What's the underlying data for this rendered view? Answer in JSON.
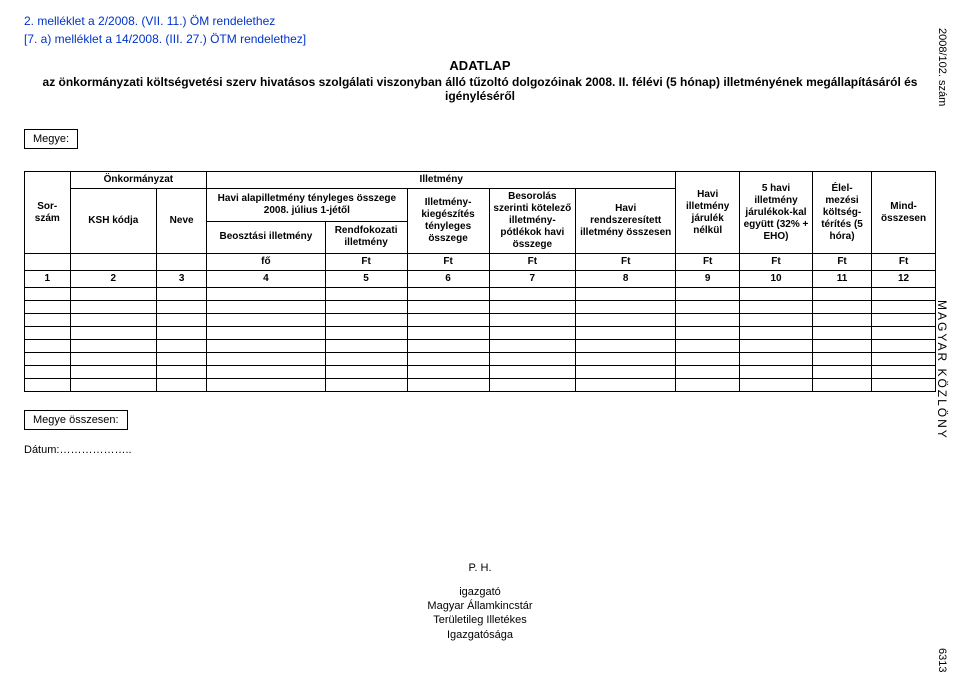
{
  "attachment1": "2. melléklet a 2/2008. (VII. 11.) ÖM rendelethez",
  "attachment2": "[7. a) melléklet a 14/2008. (III. 27.) ÖTM rendelethez]",
  "title": "ADATLAP",
  "subtitle": "az önkormányzati költségvetési szerv hivatásos szolgálati viszonyban álló tűzoltó dolgozóinak 2008. II. félévi (5 hónap) illetményének megállapításáról és igényléséről",
  "megye_label": "Megye:",
  "cols": {
    "c1": "Sor-szám",
    "c2_top": "Önkormányzat",
    "c2a": "KSH kódja",
    "c2b": "Neve",
    "ill_top": "Illetmény",
    "c4_top": "Havi alapilletmény tényleges összege 2008. július 1-jétől",
    "c4a": "Beosztási illetmény",
    "c4b": "Rendfokozati illetmény",
    "c5": "Illetmény-kiegészítés tényleges összege",
    "c6": "Besorolás szerinti kötelező illetmény-pótlékok havi összege",
    "c7": "Havi rendszeresített illetmény összesen",
    "c8": "Havi illetmény járulék nélkül",
    "c9": "5 havi illetmény járulékok-kal együtt (32% + EHO)",
    "c10": "Élel-mezési költség-térítés (5 hóra)",
    "c11": "Mind-összesen"
  },
  "unit_row": [
    "",
    "",
    "",
    "fő",
    "Ft",
    "Ft",
    "Ft",
    "Ft",
    "Ft",
    "Ft",
    "Ft",
    "Ft"
  ],
  "num_row": [
    "1",
    "2",
    "3",
    "4",
    "5",
    "6",
    "7",
    "8",
    "9",
    "10",
    "11",
    "12"
  ],
  "colwidths_pct": [
    5.0,
    9.5,
    5.5,
    13.0,
    9.0,
    9.0,
    9.5,
    11.0,
    7.0,
    8.0,
    6.5,
    7.0
  ],
  "megye_osszesen": "Megye összesen:",
  "datum": "Dátum:………………..",
  "ph": "P. H.",
  "sig": [
    "igazgató",
    "Magyar Államkincstár",
    "Területileg Illetékes",
    "Igazgatósága"
  ],
  "side_top": "2008/102. szám",
  "side_mid": "MAGYAR KÖZLÖNY",
  "side_bot": "6313",
  "empty_rows": 8,
  "colors": {
    "blue": "#0033c8",
    "text": "#000000",
    "bg": "#ffffff",
    "border": "#000000"
  }
}
